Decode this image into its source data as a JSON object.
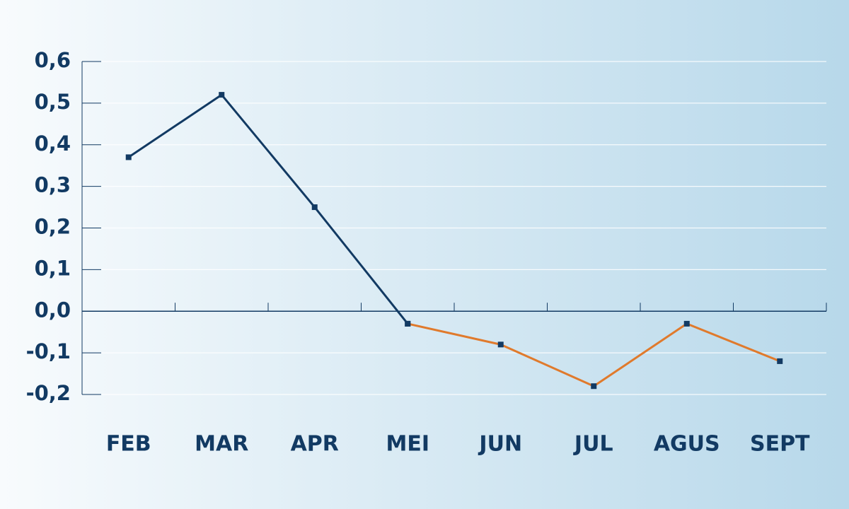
{
  "chart_data": {
    "type": "line",
    "categories": [
      "FEB",
      "MAR",
      "APR",
      "MEI",
      "JUN",
      "JUL",
      "AGUS",
      "SEPT"
    ],
    "series": [
      {
        "color": "#123a63",
        "values": [
          0.37,
          0.52,
          0.25,
          -0.03,
          null,
          null,
          null,
          null
        ]
      },
      {
        "color": "#e07a2c",
        "values": [
          null,
          null,
          null,
          -0.03,
          -0.08,
          -0.18,
          -0.03,
          -0.12
        ]
      }
    ],
    "marker_color": "#123a63",
    "ylim": [
      -0.2,
      0.6
    ],
    "yticks": [
      {
        "value": 0.6,
        "label": "0,6"
      },
      {
        "value": 0.5,
        "label": "0,5"
      },
      {
        "value": 0.4,
        "label": "0,4"
      },
      {
        "value": 0.3,
        "label": "0,3"
      },
      {
        "value": 0.2,
        "label": "0,2"
      },
      {
        "value": 0.1,
        "label": "0,1"
      },
      {
        "value": 0.0,
        "label": "0,0"
      },
      {
        "value": -0.1,
        "label": "-0,1"
      },
      {
        "value": -0.2,
        "label": "-0,2"
      }
    ],
    "grid": true
  }
}
